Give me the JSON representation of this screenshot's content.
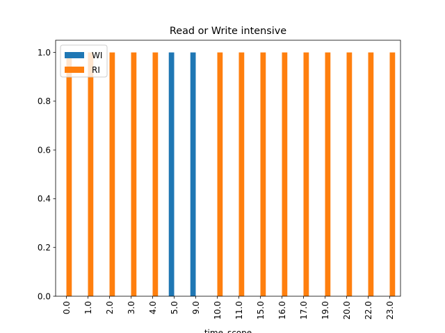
{
  "chart_data": {
    "type": "bar",
    "title": "Read or Write intensive",
    "xlabel": "time_scope",
    "ylabel": "",
    "categories": [
      "0.0",
      "1.0",
      "2.0",
      "3.0",
      "4.0",
      "5.0",
      "9.0",
      "10.0",
      "11.0",
      "15.0",
      "16.0",
      "17.0",
      "19.0",
      "20.0",
      "22.0",
      "23.0"
    ],
    "series": [
      {
        "name": "WI",
        "color": "#1f77b4",
        "values": [
          0,
          0,
          0,
          0,
          0,
          1,
          1,
          0,
          0,
          0,
          0,
          0,
          0,
          0,
          0,
          0
        ]
      },
      {
        "name": "RI",
        "color": "#ff7f0e",
        "values": [
          1,
          1,
          1,
          1,
          1,
          0,
          0,
          1,
          1,
          1,
          1,
          1,
          1,
          1,
          1,
          1
        ]
      }
    ],
    "ylim": [
      0,
      1.05
    ],
    "yticks": [
      "0.0",
      "0.2",
      "0.4",
      "0.6",
      "0.8",
      "1.0"
    ],
    "grid": false,
    "legend_position": "top-left"
  }
}
